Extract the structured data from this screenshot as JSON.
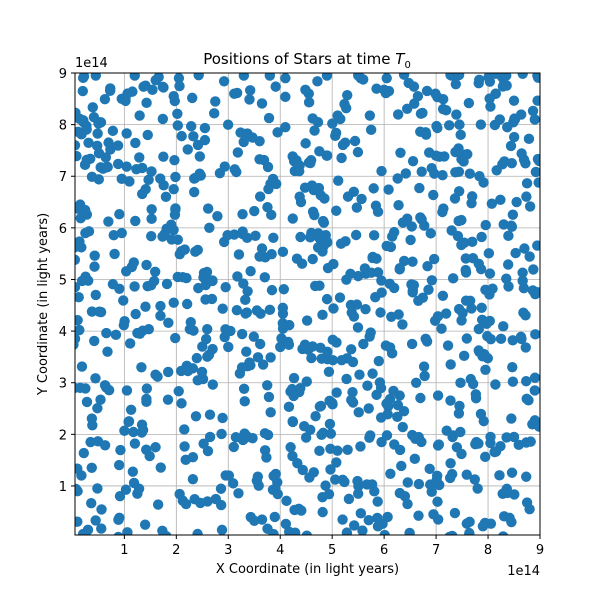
{
  "chart_data": {
    "type": "scatter",
    "title": "Positions of Stars at time",
    "title_symbol": "T",
    "title_subscript": "0",
    "xlabel": "X Coordinate (in light years)",
    "ylabel": "Y Coordinate (in light years)",
    "x_offset_text": "1e14",
    "y_offset_text": "1e14",
    "xlim": [
      0.05,
      9.0
    ],
    "ylim": [
      0.05,
      9.0
    ],
    "scale_note": "values in units of 1e14 light years",
    "xticks": [
      1,
      2,
      3,
      4,
      5,
      6,
      7,
      8,
      9
    ],
    "yticks": [
      1,
      2,
      3,
      4,
      5,
      6,
      7,
      8,
      9
    ],
    "tick_labels": [
      "1",
      "2",
      "3",
      "4",
      "5",
      "6",
      "7",
      "8",
      "9"
    ],
    "grid": true,
    "point_color": "#1f77b4",
    "n_points": 1000,
    "distribution": "uniform random over [0, 9e14] x [0, 9e14]",
    "sample_points": [
      [
        0.45,
        8.95
      ],
      [
        1.2,
        8.95
      ],
      [
        2.05,
        8.9
      ],
      [
        3.3,
        8.95
      ],
      [
        3.8,
        8.95
      ],
      [
        4.1,
        8.9
      ],
      [
        4.9,
        8.95
      ],
      [
        5.55,
        8.9
      ],
      [
        6.05,
        8.9
      ],
      [
        7.3,
        8.95
      ],
      [
        8.35,
        8.95
      ],
      [
        8.95,
        8.95
      ],
      [
        0.2,
        8.65
      ],
      [
        0.95,
        8.5
      ],
      [
        1.95,
        8.55
      ],
      [
        2.75,
        8.45
      ],
      [
        4.55,
        8.6
      ],
      [
        6.65,
        8.55
      ],
      [
        8.15,
        8.6
      ],
      [
        0.05,
        7.6
      ],
      [
        0.5,
        8.05
      ],
      [
        1.45,
        7.8
      ],
      [
        3.95,
        7.85
      ],
      [
        5.25,
        7.65
      ],
      [
        6.8,
        7.85
      ],
      [
        7.45,
        8.0
      ],
      [
        8.9,
        8.1
      ],
      [
        0.15,
        6.45
      ],
      [
        0.95,
        6.95
      ],
      [
        1.95,
        6.75
      ],
      [
        2.45,
        7.05
      ],
      [
        4.4,
        6.5
      ],
      [
        5.95,
        7.1
      ],
      [
        7.65,
        7.05
      ],
      [
        8.55,
        6.5
      ],
      [
        0.25,
        5.9
      ],
      [
        0.95,
        5.9
      ],
      [
        2.1,
        5.55
      ],
      [
        3.65,
        5.6
      ],
      [
        4.7,
        5.85
      ],
      [
        6.05,
        5.65
      ],
      [
        7.3,
        5.95
      ],
      [
        8.7,
        5.6
      ],
      [
        0.05,
        4.85
      ],
      [
        0.45,
        4.7
      ],
      [
        1.95,
        4.55
      ],
      [
        2.95,
        4.85
      ],
      [
        4.05,
        4.45
      ],
      [
        5.15,
        4.65
      ],
      [
        6.55,
        4.75
      ],
      [
        7.95,
        4.8
      ],
      [
        8.95,
        4.75
      ],
      [
        0.05,
        3.85
      ],
      [
        1.3,
        3.95
      ],
      [
        2.5,
        3.7
      ],
      [
        4.05,
        4.15
      ],
      [
        5.6,
        3.75
      ],
      [
        6.8,
        3.85
      ],
      [
        8.25,
        3.85
      ],
      [
        0.15,
        2.9
      ],
      [
        1.05,
        2.85
      ],
      [
        2.1,
        2.6
      ],
      [
        3.75,
        2.95
      ],
      [
        4.95,
        2.65
      ],
      [
        6.3,
        2.75
      ],
      [
        7.45,
        2.55
      ],
      [
        8.9,
        2.85
      ],
      [
        0.35,
        1.85
      ],
      [
        1.6,
        1.75
      ],
      [
        2.65,
        1.95
      ],
      [
        4.2,
        1.75
      ],
      [
        5.95,
        1.85
      ],
      [
        7.4,
        1.75
      ],
      [
        8.5,
        1.95
      ],
      [
        0.1,
        0.9
      ],
      [
        1.25,
        0.85
      ],
      [
        2.6,
        0.7
      ],
      [
        3.55,
        1.1
      ],
      [
        5.5,
        0.85
      ],
      [
        6.45,
        0.65
      ],
      [
        7.8,
        0.95
      ],
      [
        8.8,
        0.55
      ],
      [
        0.3,
        0.15
      ],
      [
        1.4,
        0.25
      ],
      [
        3.65,
        0.35
      ],
      [
        5.2,
        0.35
      ],
      [
        6.95,
        0.45
      ],
      [
        8.45,
        0.3
      ]
    ]
  }
}
